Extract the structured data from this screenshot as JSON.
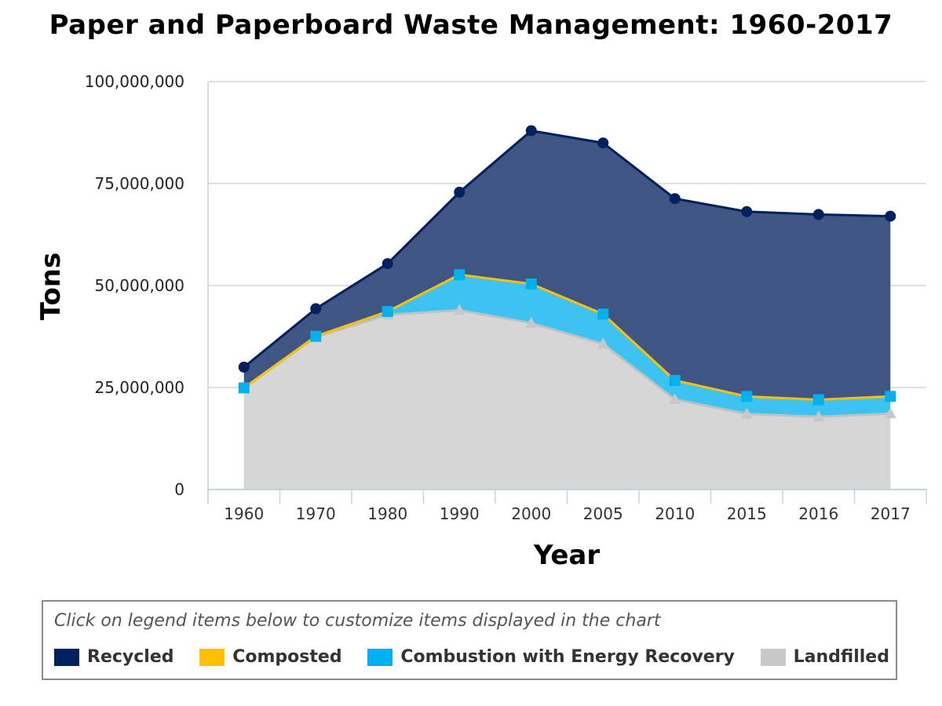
{
  "chart_data": {
    "type": "area",
    "title": "Paper and Paperboard Waste Management: 1960-2017",
    "xlabel": "Year",
    "ylabel": "Tons",
    "ylim": [
      0,
      100000000
    ],
    "yticks": [
      0,
      25000000,
      50000000,
      75000000,
      100000000
    ],
    "ytick_labels": [
      "0",
      "25,000,000",
      "50,000,000",
      "75,000,000",
      "100,000,000"
    ],
    "stacked": true,
    "grid": true,
    "categories": [
      "1960",
      "1970",
      "1980",
      "1990",
      "2000",
      "2005",
      "2010",
      "2015",
      "2016",
      "2017"
    ],
    "series": [
      {
        "name": "Recycled",
        "color": "#002060",
        "marker": "circle",
        "values": [
          5080000,
          6770000,
          11740000,
          20230000,
          37560000,
          41960000,
          44570000,
          45320000,
          45420000,
          44170000
        ]
      },
      {
        "name": "Composted",
        "color": "#ffc000",
        "marker": "diamond",
        "values": [
          0,
          0,
          0,
          0,
          0,
          0,
          0,
          0,
          0,
          0
        ]
      },
      {
        "name": "Combustion with Energy Recovery",
        "color": "#00b0f0",
        "marker": "square",
        "values": [
          0,
          160000,
          830000,
          8680000,
          9620000,
          7310000,
          4650000,
          4270000,
          4170000,
          4220000
        ]
      },
      {
        "name": "Landfilled",
        "color": "#c8c8c8",
        "marker": "triangle",
        "values": [
          24910000,
          37390000,
          42800000,
          43970000,
          40780000,
          35690000,
          22090000,
          18540000,
          17830000,
          18610000
        ]
      }
    ],
    "legend": {
      "position": "bottom",
      "hint": "Click on legend items below to customize items displayed in the chart"
    }
  }
}
